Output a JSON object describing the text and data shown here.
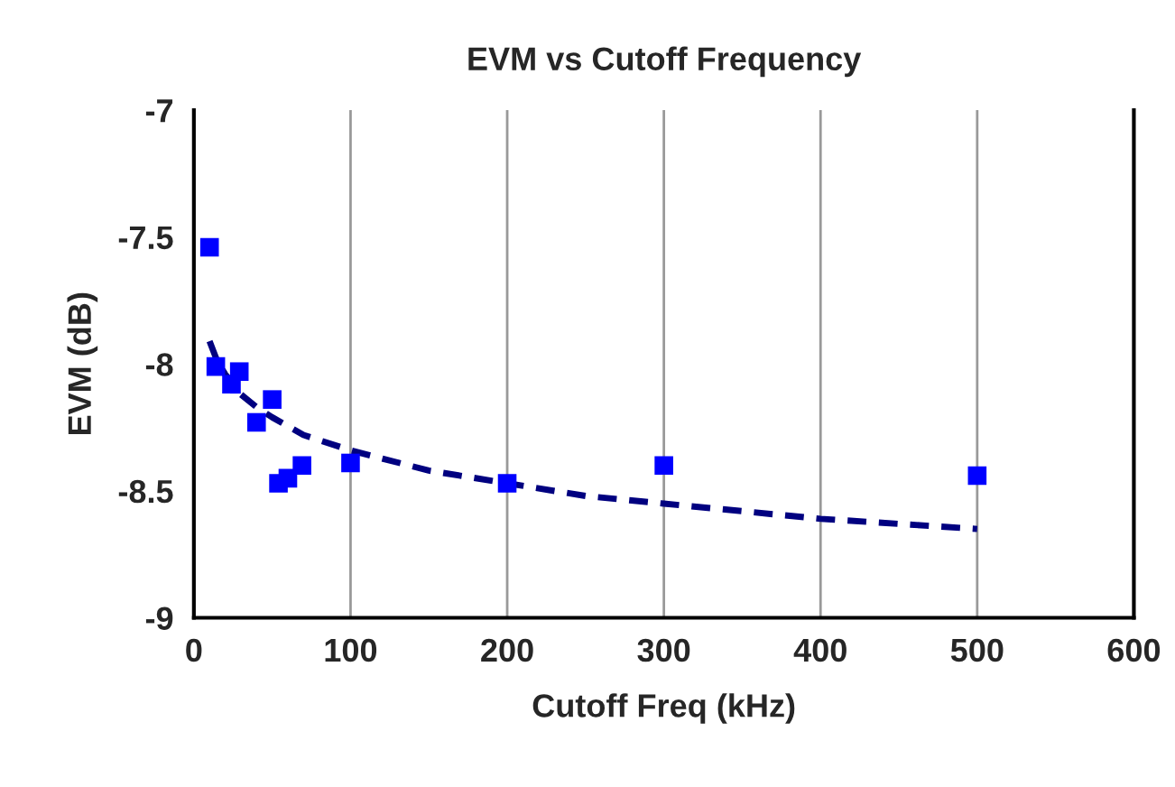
{
  "chart_data": {
    "type": "scatter",
    "title": "EVM vs Cutoff Frequency",
    "xlabel": "Cutoff Freq (kHz)",
    "ylabel": "EVM (dB)",
    "xlim": [
      0,
      600
    ],
    "xticks": [
      0,
      100,
      200,
      300,
      400,
      500,
      600
    ],
    "ylim": [
      -9,
      -7
    ],
    "yticks": [
      -9,
      -8.5,
      -8,
      -7.5,
      -7
    ],
    "grid": "x",
    "legend": false,
    "series": [
      {
        "color": "#0000ff",
        "marker": "square",
        "x": [
          10,
          14,
          24,
          29,
          40,
          50,
          54,
          60,
          69,
          100,
          200,
          300,
          500
        ],
        "values": [
          -7.54,
          -8.01,
          -8.08,
          -8.03,
          -8.23,
          -8.14,
          -8.47,
          -8.45,
          -8.4,
          -8.39,
          -8.47,
          -8.4,
          -8.44
        ]
      },
      {
        "type": "line",
        "color": "#000080",
        "line_style": "dashed",
        "marker": "none",
        "x": [
          10,
          15,
          20,
          30,
          40,
          50,
          70,
          100,
          150,
          200,
          250,
          300,
          350,
          400,
          450,
          500
        ],
        "values": [
          -7.91,
          -7.99,
          -8.04,
          -8.12,
          -8.17,
          -8.21,
          -8.28,
          -8.34,
          -8.42,
          -8.47,
          -8.52,
          -8.55,
          -8.58,
          -8.61,
          -8.63,
          -8.65
        ]
      }
    ]
  }
}
